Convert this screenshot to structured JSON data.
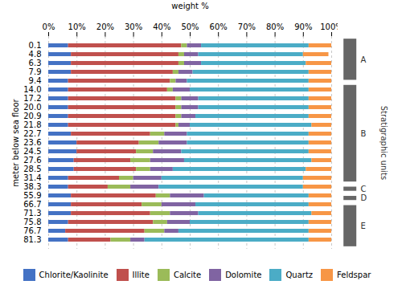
{
  "chart_data": {
    "type": "bar",
    "orientation": "horizontal",
    "stacked": true,
    "xlabel": "weight %",
    "ylabel": "meter below sea floor",
    "categories": [
      "0.1",
      "4.8",
      "6.3",
      "7.9",
      "9.4",
      "14.0",
      "17.2",
      "20.0",
      "20.9",
      "21.8",
      "22.7",
      "23.6",
      "24.5",
      "27.6",
      "28.5",
      "31.4",
      "38.3",
      "55.9",
      "66.7",
      "71.3",
      "75.8",
      "76.7",
      "81.3"
    ],
    "series": [
      {
        "name": "Chlorite/Kaolinite",
        "color": "#4472c4",
        "values": [
          7,
          8,
          8,
          8,
          7,
          7,
          7,
          7,
          7,
          7,
          8,
          10,
          10,
          9,
          9,
          7,
          7,
          8,
          8,
          8,
          7,
          6,
          7
        ]
      },
      {
        "name": "Illite",
        "color": "#c0504d",
        "values": [
          40,
          38,
          38,
          36,
          36,
          35,
          38,
          38,
          38,
          38,
          28,
          22,
          21,
          20,
          22,
          18,
          14,
          30,
          25,
          28,
          30,
          28,
          15
        ]
      },
      {
        "name": "Calcite",
        "color": "#9bbb59",
        "values": [
          2,
          2,
          2,
          2,
          2,
          2,
          2,
          2,
          2,
          1,
          5,
          7,
          6,
          7,
          5,
          5,
          8,
          5,
          7,
          7,
          5,
          7,
          7
        ]
      },
      {
        "name": "Dolomite",
        "color": "#8064a2",
        "values": [
          5,
          5,
          6,
          5,
          4,
          6,
          6,
          6,
          5,
          4,
          8,
          10,
          10,
          12,
          8,
          10,
          10,
          12,
          12,
          10,
          8,
          5,
          5
        ]
      },
      {
        "name": "Quartz",
        "color": "#4bacc6",
        "values": [
          38,
          37,
          37,
          41,
          43,
          42,
          39,
          39,
          40,
          43,
          43,
          43,
          45,
          45,
          47,
          50,
          51,
          37,
          40,
          40,
          42,
          46,
          58
        ]
      },
      {
        "name": "Feldspar",
        "color": "#f79646",
        "values": [
          8,
          9,
          9,
          8,
          8,
          8,
          8,
          8,
          8,
          7,
          8,
          8,
          8,
          7,
          9,
          10,
          10,
          8,
          8,
          7,
          8,
          8,
          8
        ]
      }
    ],
    "xlim": [
      0,
      100
    ],
    "xticks": [
      {
        "value": 0,
        "label": "0%"
      },
      {
        "value": 10,
        "label": "10%"
      },
      {
        "value": 20,
        "label": "20%"
      },
      {
        "value": 30,
        "label": "30%"
      },
      {
        "value": 40,
        "label": "40%"
      },
      {
        "value": 50,
        "label": "50%"
      },
      {
        "value": 60,
        "label": "60%"
      },
      {
        "value": 70,
        "label": "70%"
      },
      {
        "value": 80,
        "label": "80%"
      },
      {
        "value": 90,
        "label": "90%"
      },
      {
        "value": 100,
        "label": "100%"
      }
    ],
    "grid": true,
    "legend": "bottom",
    "strat_units_label": "Stratigraphic units",
    "strat_units": [
      {
        "name": "A",
        "start": "0.1",
        "end": "9.4",
        "color": "#666666"
      },
      {
        "name": "B",
        "start": "14.0",
        "end": "31.4",
        "color": "#666666"
      },
      {
        "name": "C",
        "start": "38.3",
        "end": "38.3",
        "color": "#666666"
      },
      {
        "name": "D",
        "start": "55.9",
        "end": "55.9",
        "color": "#666666"
      },
      {
        "name": "E",
        "start": "66.7",
        "end": "81.3",
        "color": "#666666"
      }
    ]
  }
}
